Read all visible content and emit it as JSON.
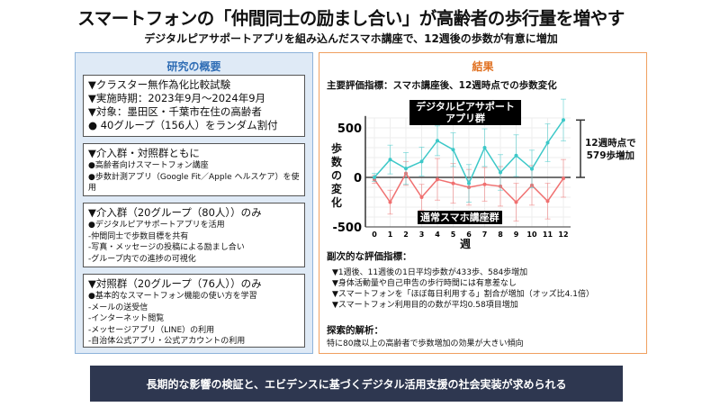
{
  "title": "スマートフォンの「仲間同士の励まし合い」が高齢者の歩行量を増やす",
  "subtitle": "デジタルピアサポートアプリを組み込んだスマホ講座で、12週後の歩数が有意に増加",
  "left": {
    "heading": "研究の概要",
    "box1": [
      "▼クラスター無作為化比較試験",
      "▼実施時期：2023年9月～2024年9月",
      "▼対象：墨田区・千葉市在住の高齢者",
      "● 40グループ（156人）をランダム割付"
    ],
    "box2": {
      "head": "▼介入群・対照群ともに",
      "items": [
        "●高齢者向けスマートフォン講座",
        "●歩数計測アプリ（Google Fit／Apple ヘルスケア）を使用"
      ]
    },
    "box3": {
      "head": "▼介入群（20グループ（80人））のみ",
      "items": [
        "●デジタルピアサポートアプリを活用",
        "-仲間同士で歩数目標を共有",
        "-写真・メッセージの投稿による励まし合い",
        "-グループ内での進捗の可視化"
      ]
    },
    "box4": {
      "head": "▼対照群（20グループ（76人））のみ",
      "items": [
        "●基本的なスマートフォン機能の使い方を学習",
        "-メールの送受信",
        "-インターネット閲覧",
        "-メッセージアプリ（LINE）の利用",
        "-自治体公式アプリ・公式アカウントの利用"
      ]
    }
  },
  "right": {
    "heading": "結果",
    "main_metric": "主要評価指標：スマホ講座後、12週時点での歩数変化",
    "secondary_heading": "副次的な評価指標：",
    "secondary": [
      "▼1週後、11週後の1日平均歩数が433歩、584歩増加",
      "▼身体活動量や自己申告の歩行時間には有意差なし",
      "▼スマートフォンを「ほぼ毎日利用する」割合が増加（オッズ比4.1倍）",
      "▼スマートフォン利用目的の数が平均0.58項目増加"
    ],
    "exploratory_heading": "探索的解析：",
    "exploratory": "特に80歳以上の高齢者で歩数増加の効果が大きい傾向"
  },
  "chart_data": {
    "type": "line",
    "xlabel": "週",
    "ylabel": "歩数の変化",
    "x": [
      0,
      1,
      2,
      3,
      4,
      5,
      6,
      7,
      8,
      9,
      10,
      11,
      12
    ],
    "ylim": [
      -500,
      600
    ],
    "yticks": [
      500,
      0,
      -500
    ],
    "series": [
      {
        "name": "デジタルピアサポートアプリ群",
        "color": "#3cc8c8",
        "values": [
          0,
          180,
          90,
          160,
          370,
          280,
          -60,
          300,
          50,
          220,
          85,
          350,
          579
        ],
        "error": [
          40,
          145,
          160,
          145,
          150,
          170,
          190,
          190,
          180,
          210,
          190,
          190,
          210
        ]
      },
      {
        "name": "通常スマホ講座群",
        "color": "#f07070",
        "values": [
          -20,
          -250,
          40,
          -200,
          -20,
          -60,
          -100,
          -70,
          -90,
          -250,
          -80,
          -240,
          -10
        ],
        "error": [
          40,
          120,
          120,
          130,
          210,
          200,
          180,
          170,
          200,
          190,
          200,
          180,
          190
        ]
      }
    ],
    "annotation": [
      "12週時点で",
      "579歩増加"
    ]
  },
  "banner": "長期的な影響の検証と、エビデンスに基づくデジタル活用支援の社会実装が求められる"
}
